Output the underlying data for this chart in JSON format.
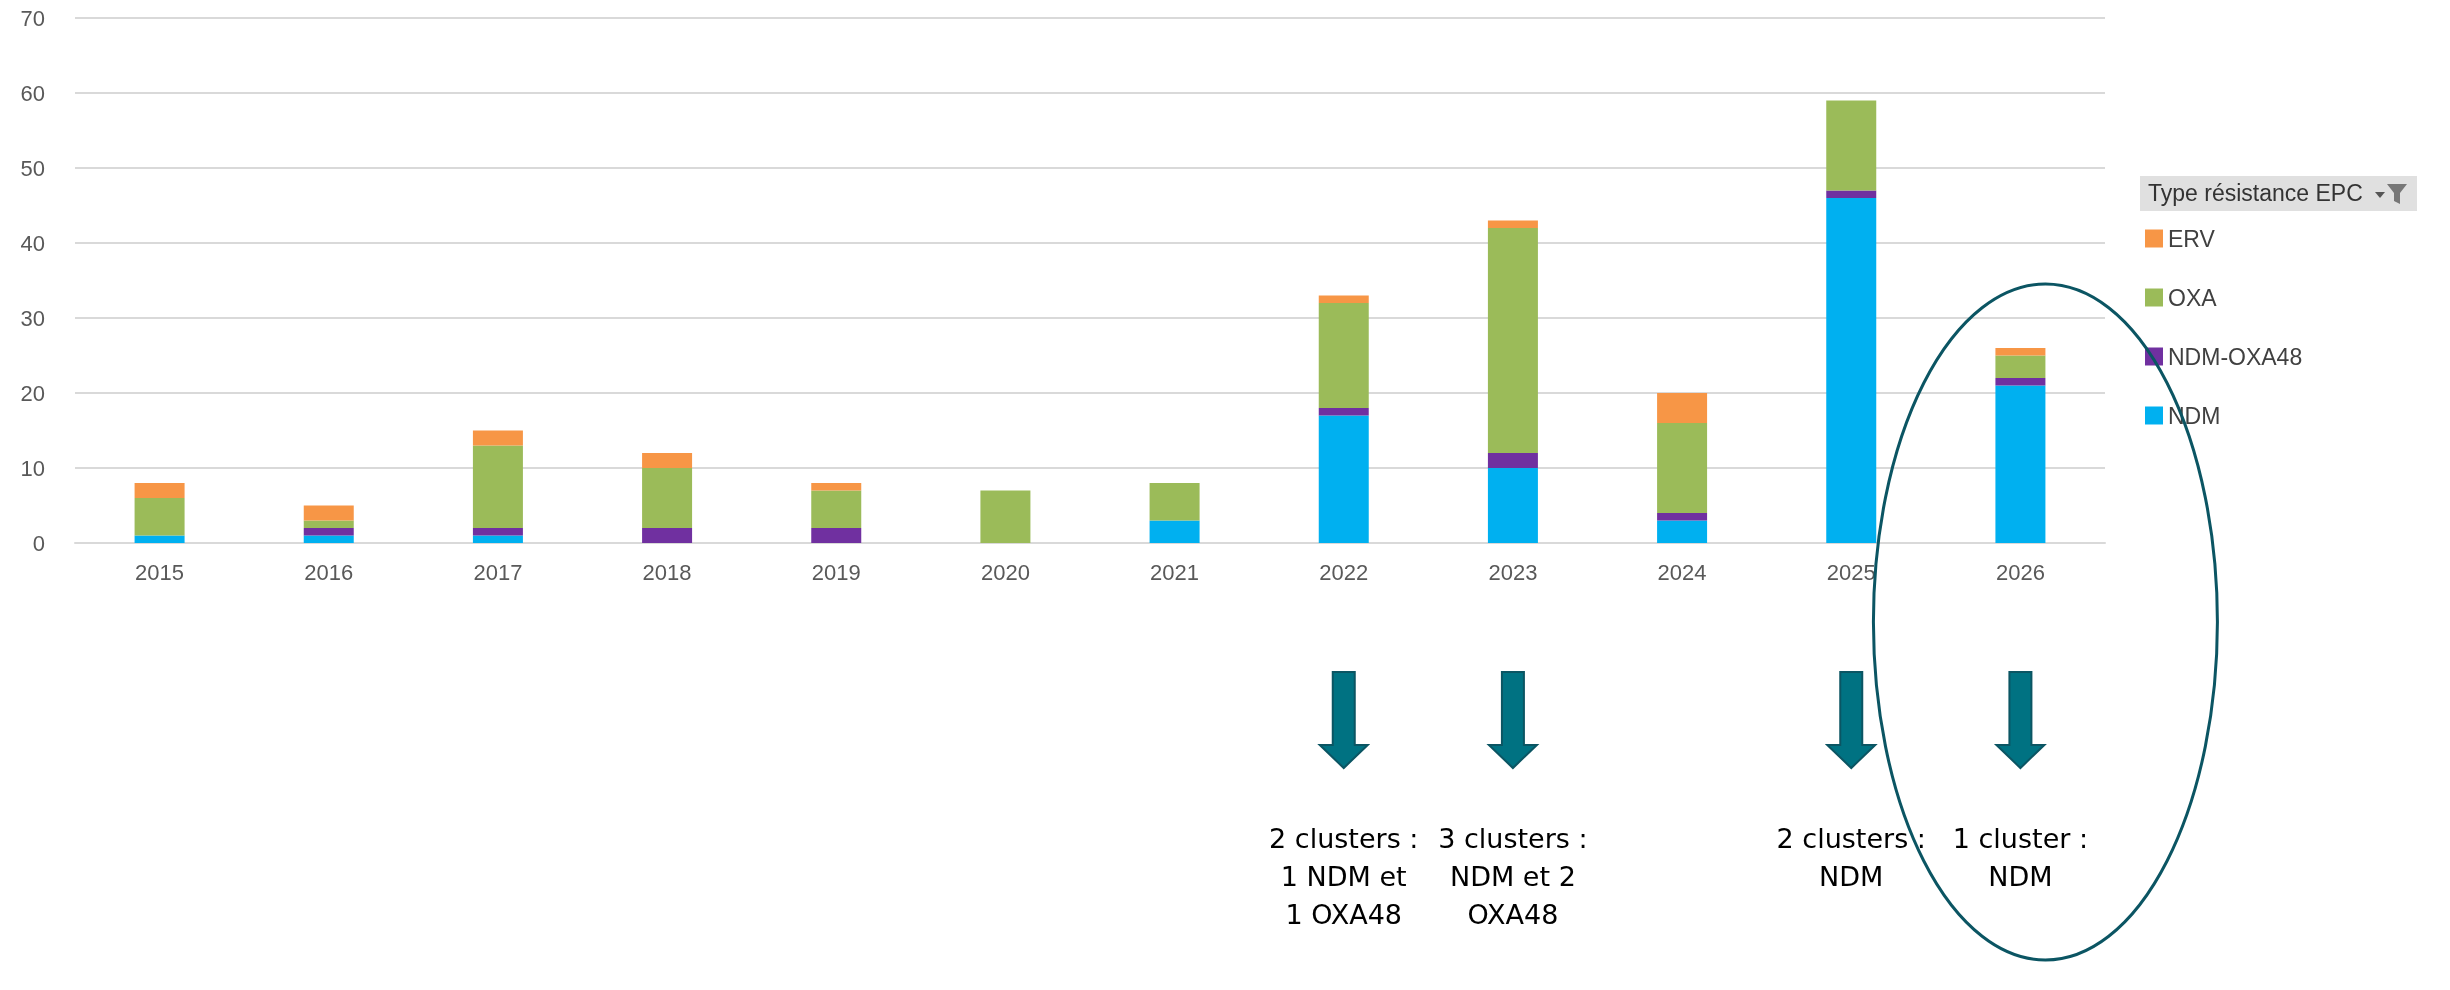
{
  "chart_data": {
    "type": "bar",
    "stacked": true,
    "legend": "right",
    "legend_title": "Type résistance EPC",
    "grid": "y",
    "categories": [
      "2015",
      "2016",
      "2017",
      "2018",
      "2019",
      "2020",
      "2021",
      "2022",
      "2023",
      "2024",
      "2025",
      "2026"
    ],
    "ylim": [
      0,
      70
    ],
    "yticks": [
      0,
      10,
      20,
      30,
      40,
      50,
      60,
      70
    ],
    "series": [
      {
        "name": "NDM",
        "color": "#00b0f0",
        "values": [
          1,
          1,
          1,
          0,
          0,
          0,
          3,
          17,
          10,
          3,
          46,
          21
        ]
      },
      {
        "name": "NDM-OXA48",
        "color": "#7030a0",
        "values": [
          0,
          1,
          1,
          2,
          2,
          0,
          0,
          1,
          2,
          1,
          1,
          1
        ]
      },
      {
        "name": "OXA",
        "color": "#9bbb59",
        "values": [
          5,
          1,
          11,
          8,
          5,
          7,
          5,
          14,
          30,
          12,
          12,
          3
        ]
      },
      {
        "name": "ERV",
        "color": "#f79646",
        "values": [
          2,
          2,
          2,
          2,
          1,
          0,
          0,
          1,
          1,
          4,
          0,
          1
        ]
      }
    ],
    "annotations": [
      "2 clusters : 1 NDM et 1 OXA48",
      "3 clusters : NDM et 2 OXA48",
      "2 clusters : NDM",
      "1 cluster : NDM"
    ]
  }
}
